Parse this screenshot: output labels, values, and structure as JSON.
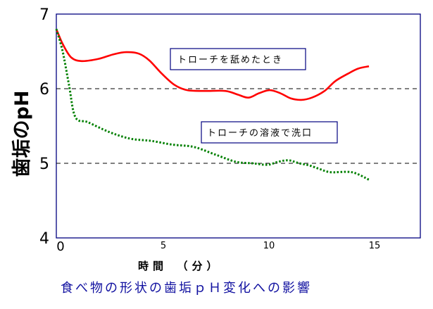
{
  "chart_data": {
    "type": "line",
    "ylabel": "歯垢のpH",
    "xlabel": "時間　（分）",
    "caption": "食べ物の形状の歯垢ｐＨ変化への影響",
    "xlim": [
      0,
      17
    ],
    "ylim": [
      4,
      7
    ],
    "x_ticks": [
      0,
      5,
      10,
      15
    ],
    "x_tick_labels": [
      "0",
      "5",
      "10",
      "15"
    ],
    "y_ticks": [
      4,
      5,
      6,
      7
    ],
    "y_tick_labels": [
      "4",
      "5",
      "6",
      "7"
    ],
    "reference_lines": [
      5,
      6
    ],
    "series": [
      {
        "name": "トローチを舐めたとき",
        "color": "#ff0000",
        "style": "solid",
        "x": [
          0,
          0.3,
          0.7,
          1.2,
          2,
          2.7,
          3.3,
          3.9,
          4.4,
          5,
          5.6,
          6.2,
          7,
          8,
          8.6,
          9.1,
          9.6,
          10.1,
          10.6,
          11.1,
          11.6,
          12.1,
          12.7,
          13.2,
          13.8,
          14.3,
          14.8
        ],
        "y": [
          6.8,
          6.6,
          6.42,
          6.37,
          6.4,
          6.46,
          6.49,
          6.47,
          6.38,
          6.2,
          6.05,
          5.98,
          5.97,
          5.97,
          5.92,
          5.88,
          5.94,
          5.98,
          5.94,
          5.87,
          5.85,
          5.88,
          5.97,
          6.1,
          6.2,
          6.27,
          6.3
        ]
      },
      {
        "name": "トローチの溶液で洗口",
        "color": "#008000",
        "style": "dotted",
        "x": [
          0,
          0.3,
          0.6,
          0.9,
          1.5,
          2.5,
          3.5,
          4.5,
          5.5,
          6.5,
          7.5,
          8.5,
          9.3,
          10,
          10.5,
          11,
          11.5,
          12,
          12.5,
          13,
          14,
          14.8
        ],
        "y": [
          6.8,
          6.5,
          6.05,
          5.62,
          5.55,
          5.42,
          5.33,
          5.3,
          5.25,
          5.22,
          5.12,
          5.02,
          5.0,
          4.98,
          5.02,
          5.04,
          5.0,
          4.97,
          4.92,
          4.88,
          4.88,
          4.78
        ]
      }
    ],
    "annotations": [
      {
        "text": "トローチを舐めたとき",
        "series": 0
      },
      {
        "text": "トローチの溶液で洗口",
        "series": 1
      }
    ]
  }
}
